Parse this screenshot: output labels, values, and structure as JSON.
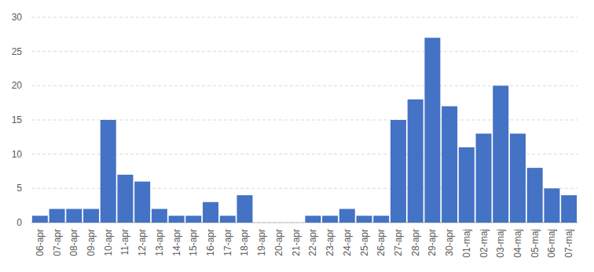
{
  "chart_data": {
    "type": "bar",
    "categories": [
      "06-apr",
      "07-apr",
      "08-apr",
      "09-apr",
      "10-apr",
      "11-apr",
      "12-apr",
      "13-apr",
      "14-apr",
      "15-apr",
      "16-apr",
      "17-apr",
      "18-apr",
      "19-apr",
      "20-apr",
      "21-apr",
      "22-apr",
      "23-apr",
      "24-apr",
      "25-apr",
      "26-apr",
      "27-apr",
      "28-apr",
      "29-apr",
      "30-apr",
      "01-maj",
      "02-maj",
      "03-maj",
      "04-maj",
      "05-maj",
      "06-maj",
      "07-maj"
    ],
    "values": [
      1,
      2,
      2,
      2,
      15,
      7,
      6,
      2,
      1,
      1,
      3,
      1,
      4,
      0,
      0,
      0,
      1,
      1,
      2,
      1,
      1,
      15,
      18,
      27,
      17,
      11,
      13,
      20,
      13,
      8,
      5,
      4
    ],
    "color": "#4472c4",
    "ylim": [
      0,
      30
    ],
    "yticks": [
      0,
      5,
      10,
      15,
      20,
      25,
      30
    ],
    "grid": true
  }
}
